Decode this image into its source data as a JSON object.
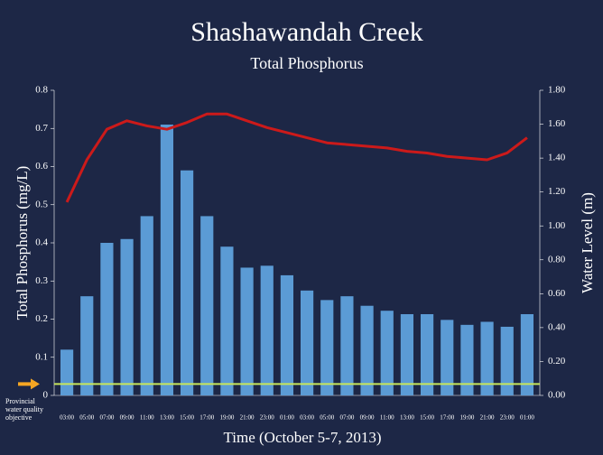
{
  "chart_data": {
    "type": "bar",
    "title": "Shashawandah Creek",
    "subtitle": "Total Phosphorus",
    "xlabel": "Time (October 5-7, 2013)",
    "ylabel": "Total Phosphorus (mg/L)",
    "y2label": "Water Level (m)",
    "categories": [
      "03:00",
      "05:00",
      "07:00",
      "09:00",
      "11:00",
      "13:00",
      "15:00",
      "17:00",
      "19:00",
      "21:00",
      "23:00",
      "01:00",
      "03:00",
      "05:00",
      "07:00",
      "09:00",
      "11:00",
      "13:00",
      "15:00",
      "17:00",
      "19:00",
      "21:00",
      "23:00",
      "01:00"
    ],
    "series": [
      {
        "type": "bar",
        "color": "#5b9bd5",
        "values": [
          0.12,
          0.26,
          0.4,
          0.41,
          0.47,
          0.71,
          0.59,
          0.47,
          0.39,
          0.335,
          0.34,
          0.315,
          0.275,
          0.25,
          0.26,
          0.235,
          0.222,
          0.213,
          0.213,
          0.198,
          0.185,
          0.193,
          0.18,
          0.213
        ]
      },
      {
        "type": "line",
        "axis": "y2",
        "color": "#cc1a1a",
        "values": [
          1.14,
          1.39,
          1.57,
          1.62,
          1.59,
          1.57,
          1.61,
          1.66,
          1.66,
          1.62,
          1.58,
          1.55,
          1.52,
          1.49,
          1.48,
          1.47,
          1.46,
          1.44,
          1.43,
          1.41,
          1.4,
          1.39,
          1.43,
          1.52
        ]
      }
    ],
    "objective": {
      "value": 0.03,
      "label": "Provincial water quality objective",
      "color": "#c8e65a",
      "arrow_color": "#f5a623"
    },
    "ylim": [
      0,
      0.8
    ],
    "yticks": [
      0,
      0.1,
      0.2,
      0.3,
      0.4,
      0.5,
      0.6,
      0.7,
      0.8
    ],
    "y2lim": [
      0,
      1.8
    ],
    "y2ticks": [
      {
        "value": 0,
        "label": "0.00"
      },
      {
        "value": 0.2,
        "label": "0.20"
      },
      {
        "value": 0.4,
        "label": "0.40"
      },
      {
        "value": 0.6,
        "label": "0.60"
      },
      {
        "value": 0.8,
        "label": "0.80"
      },
      {
        "value": 1.0,
        "label": "1.00"
      },
      {
        "value": 1.2,
        "label": "1.20"
      },
      {
        "value": 1.4,
        "label": "1.40"
      },
      {
        "value": 1.6,
        "label": "1.60"
      },
      {
        "value": 1.8,
        "label": "1.80"
      }
    ],
    "grid": false
  }
}
